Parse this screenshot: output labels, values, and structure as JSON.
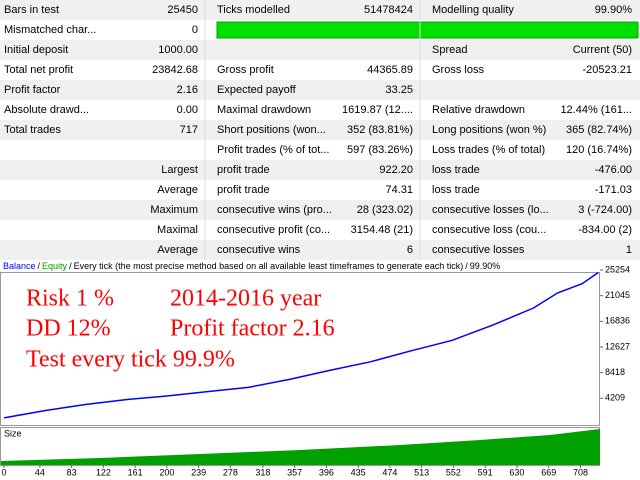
{
  "table": {
    "rows": [
      [
        "Bars in test",
        "25450",
        "Ticks modelled",
        "51478424",
        "Modelling quality",
        "99.90%"
      ],
      [
        "Mismatched char...",
        "0",
        null,
        null,
        null,
        null
      ],
      [
        "Initial deposit",
        "1000.00",
        null,
        null,
        "Spread",
        "Current (50)"
      ],
      [
        "Total net profit",
        "23842.68",
        "Gross profit",
        "44365.89",
        "Gross loss",
        "-20523.21"
      ],
      [
        "Profit factor",
        "2.16",
        "Expected payoff",
        "33.25",
        null,
        null
      ],
      [
        "Absolute drawd...",
        "0.00",
        "Maximal drawdown",
        "1619.87 (12....",
        "Relative drawdown",
        "12.44% (161..."
      ],
      [
        "Total trades",
        "717",
        "Short positions (won...",
        "352 (83.81%)",
        "Long positions (won %)",
        "365 (82.74%)"
      ],
      [
        null,
        null,
        "Profit trades (% of tot...",
        "597 (83.26%)",
        "Loss trades (% of total)",
        "120 (16.74%)"
      ],
      [
        null,
        "Largest",
        "profit trade",
        "922.20",
        "loss trade",
        "-476.00"
      ],
      [
        null,
        "Average",
        "profit trade",
        "74.31",
        "loss trade",
        "-171.03"
      ],
      [
        null,
        "Maximum",
        "consecutive wins (pro...",
        "28 (323.02)",
        "consecutive losses (lo...",
        "3 (-724.00)"
      ],
      [
        null,
        "Maximal",
        "consecutive profit (co...",
        "3154.48 (21)",
        "consecutive loss (cou...",
        "-834.00 (2)"
      ],
      [
        null,
        "Average",
        "consecutive wins",
        "6",
        "consecutive losses",
        "1"
      ]
    ]
  },
  "chart_data": {
    "type": "line",
    "separator": "/",
    "mode": "Every tick (the most precise method based on all available least timeframes to generate each tick)",
    "quality": "99.90%",
    "equity_label": "Equity",
    "size_label": "Size",
    "x": [
      0,
      50,
      100,
      150,
      200,
      250,
      300,
      350,
      400,
      450,
      500,
      550,
      600,
      650,
      680,
      710,
      730
    ],
    "series": [
      {
        "name": "Balance",
        "color": "#0000ff",
        "values": [
          1000,
          2200,
          3200,
          4000,
          4600,
          5300,
          6000,
          7300,
          8800,
          10200,
          12000,
          13700,
          16200,
          19000,
          21500,
          23000,
          24842
        ]
      }
    ],
    "equity_color": "#00a000",
    "xlim": [
      0,
      732
    ],
    "xticks": [
      0,
      44,
      83,
      122,
      161,
      200,
      239,
      278,
      318,
      357,
      396,
      435,
      474,
      513,
      552,
      591,
      630,
      669,
      708
    ],
    "ylim": [
      0,
      25254
    ],
    "yticks": [
      4209,
      8418,
      12627,
      16836,
      21045,
      25254
    ],
    "annotations": [
      "Risk 1 %",
      "2014-2016 year",
      "DD 12%",
      "Profit factor 2.16",
      "Test every tick 99.9%"
    ],
    "annotation_color": "#ff0000"
  }
}
